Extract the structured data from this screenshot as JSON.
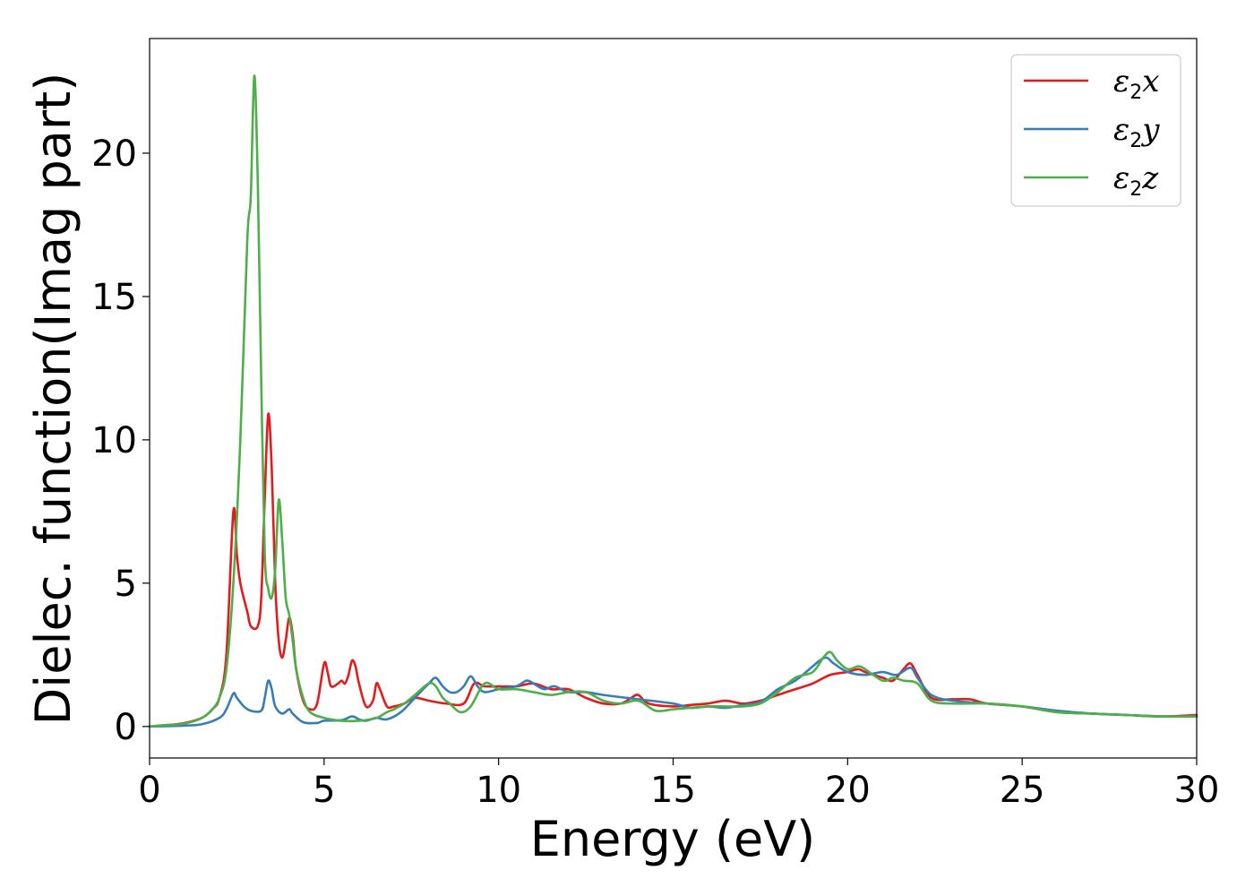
{
  "chart_data": {
    "type": "line",
    "xlabel": "Energy (eV)",
    "ylabel": "Dielec. function(Imag part)",
    "xlim": [
      0,
      30
    ],
    "ylim": [
      -1.1,
      24
    ],
    "xticks": [
      0,
      5,
      10,
      15,
      20,
      25,
      30
    ],
    "yticks": [
      0,
      5,
      10,
      15,
      20
    ],
    "grid": false,
    "legend_position": "top-right",
    "series": [
      {
        "name": "ε2x",
        "legend": {
          "base": "ε",
          "sub": "2",
          "axis": "x"
        },
        "color": "#e41a1c",
        "points": [
          [
            0,
            0
          ],
          [
            0.5,
            0.05
          ],
          [
            1.0,
            0.12
          ],
          [
            1.5,
            0.3
          ],
          [
            1.8,
            0.6
          ],
          [
            2.0,
            1.0
          ],
          [
            2.2,
            2.5
          ],
          [
            2.4,
            7.5
          ],
          [
            2.5,
            6.0
          ],
          [
            2.6,
            5.0
          ],
          [
            2.8,
            4.0
          ],
          [
            2.9,
            3.5
          ],
          [
            3.1,
            3.5
          ],
          [
            3.2,
            4.5
          ],
          [
            3.3,
            8.0
          ],
          [
            3.4,
            10.9
          ],
          [
            3.5,
            9.0
          ],
          [
            3.6,
            5.0
          ],
          [
            3.7,
            3.0
          ],
          [
            3.8,
            2.4
          ],
          [
            3.9,
            3.0
          ],
          [
            4.0,
            3.8
          ],
          [
            4.1,
            3.2
          ],
          [
            4.2,
            2.0
          ],
          [
            4.4,
            0.9
          ],
          [
            4.6,
            0.6
          ],
          [
            4.8,
            0.8
          ],
          [
            5.0,
            2.2
          ],
          [
            5.1,
            1.9
          ],
          [
            5.2,
            1.4
          ],
          [
            5.4,
            1.5
          ],
          [
            5.5,
            1.6
          ],
          [
            5.6,
            1.5
          ],
          [
            5.7,
            1.8
          ],
          [
            5.8,
            2.3
          ],
          [
            5.9,
            2.1
          ],
          [
            6.0,
            1.5
          ],
          [
            6.2,
            0.7
          ],
          [
            6.4,
            0.9
          ],
          [
            6.5,
            1.5
          ],
          [
            6.6,
            1.3
          ],
          [
            6.8,
            0.7
          ],
          [
            7.0,
            0.7
          ],
          [
            7.3,
            0.8
          ],
          [
            7.6,
            1.0
          ],
          [
            8.0,
            0.9
          ],
          [
            8.5,
            0.8
          ],
          [
            9.0,
            0.8
          ],
          [
            9.3,
            1.5
          ],
          [
            9.6,
            1.4
          ],
          [
            10.0,
            1.4
          ],
          [
            10.5,
            1.4
          ],
          [
            11.0,
            1.5
          ],
          [
            11.5,
            1.3
          ],
          [
            12.0,
            1.3
          ],
          [
            12.5,
            1.0
          ],
          [
            13.0,
            0.8
          ],
          [
            13.5,
            0.8
          ],
          [
            13.8,
            1.0
          ],
          [
            14.0,
            1.1
          ],
          [
            14.3,
            0.8
          ],
          [
            15.0,
            0.7
          ],
          [
            15.5,
            0.75
          ],
          [
            16.0,
            0.8
          ],
          [
            16.5,
            0.9
          ],
          [
            17.0,
            0.8
          ],
          [
            17.5,
            0.9
          ],
          [
            18.0,
            1.1
          ],
          [
            18.5,
            1.3
          ],
          [
            19.0,
            1.5
          ],
          [
            19.5,
            1.8
          ],
          [
            20.0,
            1.9
          ],
          [
            20.3,
            2.0
          ],
          [
            20.5,
            1.9
          ],
          [
            21.0,
            1.7
          ],
          [
            21.3,
            1.6
          ],
          [
            21.6,
            2.0
          ],
          [
            21.8,
            2.2
          ],
          [
            22.0,
            1.8
          ],
          [
            22.4,
            1.0
          ],
          [
            23.0,
            0.95
          ],
          [
            23.5,
            0.95
          ],
          [
            24.0,
            0.8
          ],
          [
            25.0,
            0.7
          ],
          [
            26.0,
            0.5
          ],
          [
            27.0,
            0.45
          ],
          [
            28.0,
            0.4
          ],
          [
            29.0,
            0.35
          ],
          [
            30.0,
            0.4
          ]
        ]
      },
      {
        "name": "ε2y",
        "legend": {
          "base": "ε",
          "sub": "2",
          "axis": "y"
        },
        "color": "#377eb8",
        "points": [
          [
            0,
            0
          ],
          [
            1.0,
            0.03
          ],
          [
            1.5,
            0.08
          ],
          [
            2.0,
            0.3
          ],
          [
            2.2,
            0.6
          ],
          [
            2.4,
            1.15
          ],
          [
            2.5,
            1.0
          ],
          [
            2.7,
            0.7
          ],
          [
            2.9,
            0.55
          ],
          [
            3.2,
            0.55
          ],
          [
            3.3,
            1.0
          ],
          [
            3.4,
            1.6
          ],
          [
            3.5,
            1.3
          ],
          [
            3.6,
            0.7
          ],
          [
            3.8,
            0.45
          ],
          [
            4.0,
            0.6
          ],
          [
            4.1,
            0.45
          ],
          [
            4.4,
            0.15
          ],
          [
            4.8,
            0.12
          ],
          [
            5.0,
            0.2
          ],
          [
            5.5,
            0.22
          ],
          [
            5.8,
            0.35
          ],
          [
            6.0,
            0.25
          ],
          [
            6.2,
            0.2
          ],
          [
            6.5,
            0.3
          ],
          [
            6.8,
            0.25
          ],
          [
            7.2,
            0.5
          ],
          [
            7.6,
            1.0
          ],
          [
            8.0,
            1.5
          ],
          [
            8.2,
            1.7
          ],
          [
            8.4,
            1.4
          ],
          [
            8.6,
            1.2
          ],
          [
            8.8,
            1.2
          ],
          [
            9.0,
            1.4
          ],
          [
            9.2,
            1.75
          ],
          [
            9.4,
            1.4
          ],
          [
            9.6,
            1.2
          ],
          [
            10.0,
            1.3
          ],
          [
            10.5,
            1.4
          ],
          [
            10.8,
            1.6
          ],
          [
            11.0,
            1.5
          ],
          [
            11.3,
            1.3
          ],
          [
            11.6,
            1.4
          ],
          [
            12.0,
            1.2
          ],
          [
            12.5,
            1.2
          ],
          [
            13.0,
            1.1
          ],
          [
            14.0,
            0.95
          ],
          [
            15.0,
            0.8
          ],
          [
            15.5,
            0.65
          ],
          [
            16.0,
            0.7
          ],
          [
            16.5,
            0.65
          ],
          [
            17.0,
            0.75
          ],
          [
            17.5,
            0.85
          ],
          [
            18.0,
            1.3
          ],
          [
            18.5,
            1.6
          ],
          [
            19.0,
            2.1
          ],
          [
            19.2,
            2.3
          ],
          [
            19.4,
            2.4
          ],
          [
            19.6,
            2.2
          ],
          [
            20.0,
            1.9
          ],
          [
            20.5,
            1.8
          ],
          [
            21.0,
            1.9
          ],
          [
            21.4,
            1.8
          ],
          [
            21.8,
            2.05
          ],
          [
            22.0,
            1.7
          ],
          [
            22.4,
            1.1
          ],
          [
            23.0,
            0.9
          ],
          [
            24.0,
            0.8
          ],
          [
            25.0,
            0.7
          ],
          [
            26.0,
            0.55
          ],
          [
            27.0,
            0.45
          ],
          [
            28.0,
            0.4
          ],
          [
            29.0,
            0.35
          ],
          [
            30.0,
            0.35
          ]
        ]
      },
      {
        "name": "ε2z",
        "legend": {
          "base": "ε",
          "sub": "2",
          "axis": "z"
        },
        "color": "#4daf4a",
        "points": [
          [
            0,
            0
          ],
          [
            0.5,
            0.05
          ],
          [
            1.0,
            0.1
          ],
          [
            1.5,
            0.3
          ],
          [
            1.8,
            0.6
          ],
          [
            2.0,
            1.0
          ],
          [
            2.2,
            2.0
          ],
          [
            2.4,
            5.0
          ],
          [
            2.6,
            10.0
          ],
          [
            2.8,
            17.0
          ],
          [
            2.9,
            18.5
          ],
          [
            3.0,
            22.7
          ],
          [
            3.1,
            19.0
          ],
          [
            3.2,
            12.0
          ],
          [
            3.3,
            6.0
          ],
          [
            3.4,
            4.8
          ],
          [
            3.5,
            4.5
          ],
          [
            3.6,
            5.5
          ],
          [
            3.7,
            7.9
          ],
          [
            3.8,
            6.5
          ],
          [
            3.9,
            4.5
          ],
          [
            4.0,
            3.9
          ],
          [
            4.1,
            3.0
          ],
          [
            4.2,
            2.0
          ],
          [
            4.4,
            1.0
          ],
          [
            4.6,
            0.5
          ],
          [
            5.0,
            0.3
          ],
          [
            5.5,
            0.2
          ],
          [
            6.0,
            0.2
          ],
          [
            6.5,
            0.3
          ],
          [
            6.8,
            0.5
          ],
          [
            7.0,
            0.6
          ],
          [
            7.3,
            0.8
          ],
          [
            7.6,
            1.1
          ],
          [
            8.0,
            1.5
          ],
          [
            8.2,
            1.4
          ],
          [
            8.4,
            1.0
          ],
          [
            8.6,
            0.8
          ],
          [
            8.9,
            0.5
          ],
          [
            9.2,
            0.7
          ],
          [
            9.6,
            1.5
          ],
          [
            10.0,
            1.3
          ],
          [
            10.5,
            1.3
          ],
          [
            11.0,
            1.2
          ],
          [
            11.5,
            1.1
          ],
          [
            12.0,
            1.2
          ],
          [
            12.5,
            1.2
          ],
          [
            13.0,
            0.9
          ],
          [
            13.5,
            0.8
          ],
          [
            14.0,
            0.9
          ],
          [
            14.5,
            0.55
          ],
          [
            15.0,
            0.6
          ],
          [
            15.5,
            0.65
          ],
          [
            16.0,
            0.7
          ],
          [
            16.5,
            0.7
          ],
          [
            17.0,
            0.7
          ],
          [
            17.5,
            0.8
          ],
          [
            18.0,
            1.2
          ],
          [
            18.5,
            1.7
          ],
          [
            19.0,
            1.9
          ],
          [
            19.3,
            2.4
          ],
          [
            19.5,
            2.6
          ],
          [
            19.7,
            2.3
          ],
          [
            20.0,
            2.0
          ],
          [
            20.3,
            2.1
          ],
          [
            20.5,
            2.0
          ],
          [
            21.0,
            1.6
          ],
          [
            21.3,
            1.7
          ],
          [
            21.6,
            1.6
          ],
          [
            22.0,
            1.5
          ],
          [
            22.4,
            0.9
          ],
          [
            23.0,
            0.8
          ],
          [
            24.0,
            0.8
          ],
          [
            25.0,
            0.7
          ],
          [
            26.0,
            0.5
          ],
          [
            27.0,
            0.45
          ],
          [
            28.0,
            0.4
          ],
          [
            29.0,
            0.35
          ],
          [
            30.0,
            0.35
          ]
        ]
      }
    ]
  }
}
